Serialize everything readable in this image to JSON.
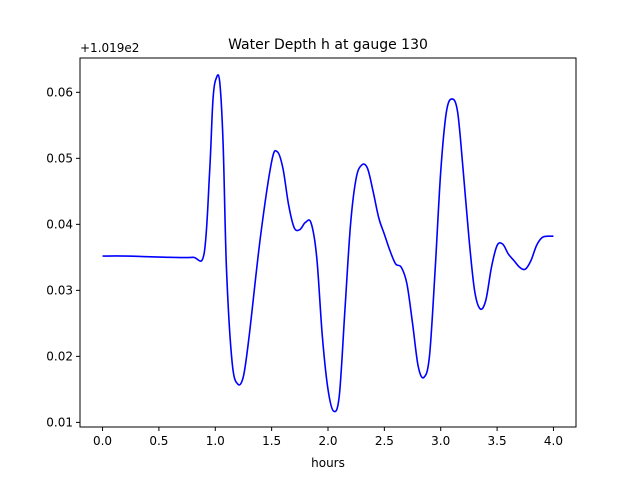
{
  "chart_data": {
    "type": "line",
    "title": "Water Depth h at gauge 130",
    "xlabel": "hours",
    "ylabel": "",
    "offset_label": "+1.019e2",
    "xlim": [
      -0.2,
      4.2
    ],
    "ylim": [
      0.0093,
      0.0652
    ],
    "grid": false,
    "x_ticks": [
      0.0,
      0.5,
      1.0,
      1.5,
      2.0,
      2.5,
      3.0,
      3.5,
      4.0
    ],
    "x_tick_labels": [
      "0.0",
      "0.5",
      "1.0",
      "1.5",
      "2.0",
      "2.5",
      "3.0",
      "3.5",
      "4.0"
    ],
    "y_ticks": [
      0.01,
      0.02,
      0.03,
      0.04,
      0.05,
      0.06
    ],
    "y_tick_labels": [
      "0.01",
      "0.02",
      "0.03",
      "0.04",
      "0.05",
      "0.06"
    ],
    "series": [
      {
        "color": "#0000ff",
        "x": [
          0.0,
          0.2,
          0.4,
          0.6,
          0.8,
          0.9,
          0.95,
          0.98,
          1.01,
          1.04,
          1.07,
          1.1,
          1.15,
          1.2,
          1.25,
          1.3,
          1.4,
          1.5,
          1.55,
          1.6,
          1.65,
          1.7,
          1.75,
          1.8,
          1.85,
          1.9,
          1.95,
          2.0,
          2.05,
          2.1,
          2.15,
          2.2,
          2.25,
          2.3,
          2.35,
          2.4,
          2.45,
          2.5,
          2.55,
          2.6,
          2.65,
          2.7,
          2.75,
          2.8,
          2.85,
          2.9,
          2.95,
          3.0,
          3.05,
          3.1,
          3.15,
          3.2,
          3.25,
          3.3,
          3.35,
          3.4,
          3.45,
          3.5,
          3.55,
          3.6,
          3.65,
          3.7,
          3.75,
          3.8,
          3.85,
          3.9,
          3.95,
          4.0
        ],
        "y": [
          0.0352,
          0.0352,
          0.0351,
          0.035,
          0.035,
          0.0355,
          0.048,
          0.059,
          0.0622,
          0.0615,
          0.052,
          0.033,
          0.019,
          0.0158,
          0.017,
          0.023,
          0.038,
          0.0495,
          0.051,
          0.0485,
          0.043,
          0.0395,
          0.0392,
          0.0403,
          0.0402,
          0.035,
          0.023,
          0.015,
          0.0117,
          0.014,
          0.027,
          0.04,
          0.047,
          0.049,
          0.0485,
          0.045,
          0.041,
          0.0385,
          0.036,
          0.034,
          0.0335,
          0.031,
          0.025,
          0.0185,
          0.0168,
          0.02,
          0.033,
          0.048,
          0.057,
          0.059,
          0.057,
          0.048,
          0.038,
          0.03,
          0.0272,
          0.0285,
          0.0335,
          0.0368,
          0.037,
          0.0355,
          0.0345,
          0.0335,
          0.0332,
          0.0345,
          0.0368,
          0.038,
          0.0382,
          0.0382
        ]
      }
    ]
  }
}
